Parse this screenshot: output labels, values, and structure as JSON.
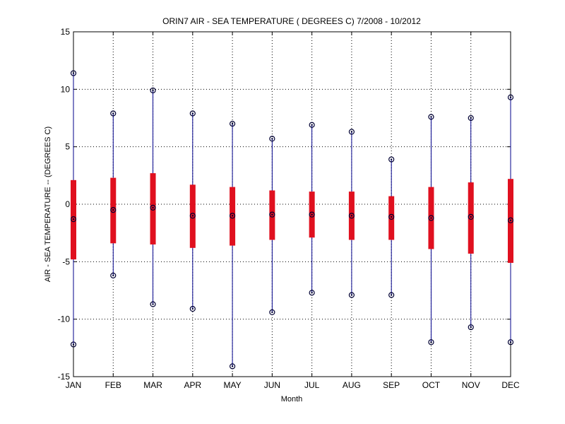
{
  "chart_data": {
    "type": "box",
    "title": "ORIN7  AIR - SEA TEMPERATURE ( DEGREES C) 7/2008 - 10/2012",
    "xlabel": "Month",
    "ylabel": "AIR - SEA TEMPERATURE -- (DEGREES C)",
    "ylim": [
      -15,
      15
    ],
    "yticks": [
      -15,
      -10,
      -5,
      0,
      5,
      10,
      15
    ],
    "grid": true,
    "categories": [
      "JAN",
      "FEB",
      "MAR",
      "APR",
      "MAY",
      "JUN",
      "JUL",
      "AUG",
      "SEP",
      "OCT",
      "NOV",
      "DEC"
    ],
    "series": [
      {
        "min": [
          -12.2,
          -6.2,
          -8.7,
          -9.1,
          -14.1,
          -9.4,
          -7.7,
          -7.9,
          -7.9,
          -12.0,
          -10.7,
          -12.0
        ],
        "q1": [
          -4.8,
          -3.4,
          -3.5,
          -3.8,
          -3.6,
          -3.1,
          -2.9,
          -3.1,
          -3.1,
          -3.9,
          -4.3,
          -5.1
        ],
        "median": [
          -1.3,
          -0.5,
          -0.3,
          -1.0,
          -1.0,
          -0.9,
          -0.9,
          -1.0,
          -1.1,
          -1.2,
          -1.1,
          -1.4
        ],
        "q3": [
          2.1,
          2.3,
          2.7,
          1.7,
          1.5,
          1.2,
          1.1,
          1.1,
          0.7,
          1.5,
          1.9,
          2.2
        ],
        "max": [
          11.4,
          7.9,
          9.9,
          7.9,
          7.0,
          5.7,
          6.9,
          6.3,
          3.9,
          7.6,
          7.5,
          9.3
        ]
      }
    ],
    "colors": {
      "box": "#e0101f",
      "whisker": "#00008b",
      "marker": "#000033",
      "grid": "#000000"
    }
  }
}
